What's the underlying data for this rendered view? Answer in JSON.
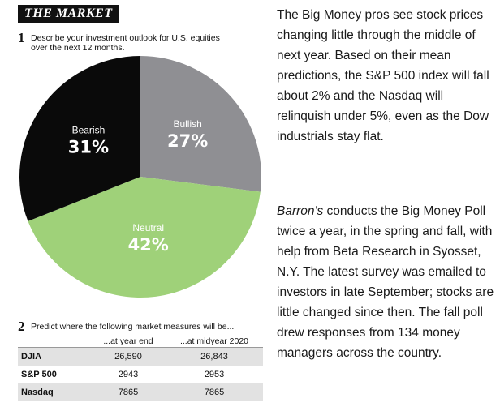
{
  "header": {
    "title": "THE MARKET"
  },
  "question1": {
    "number": "1",
    "text_line1": "Describe your investment outlook for U.S. equities",
    "text_line2": "over the next 12 months."
  },
  "chart_data": [
    {
      "type": "pie",
      "slices": [
        {
          "label": "Bullish",
          "value": 27,
          "display": "27%",
          "color": "#8f8f93"
        },
        {
          "label": "Neutral",
          "value": 42,
          "display": "42%",
          "color": "#9fd179"
        },
        {
          "label": "Bearish",
          "value": 31,
          "display": "31%",
          "color": "#0a0a0a"
        }
      ],
      "start": "12 o'clock, clockwise"
    },
    {
      "type": "table",
      "columns": [
        "",
        "...at year end",
        "...at midyear 2020"
      ],
      "rows": [
        {
          "label": "DJIA",
          "year_end": "26,590",
          "midyear": "26,843"
        },
        {
          "label": "S&P 500",
          "year_end": "2943",
          "midyear": "2953"
        },
        {
          "label": "Nasdaq",
          "year_end": "7865",
          "midyear": "7865"
        }
      ]
    }
  ],
  "question2": {
    "number": "2",
    "text": "Predict where the following market measures will be..."
  },
  "article": {
    "p1": "The Big Money pros see stock prices changing little through the middle of next year. Based on their mean predictions, the S&P 500 index will fall about 2% and the Nasdaq will relinquish under 5%, even as the Dow industrials stay flat.",
    "p2_italic": "Barron's",
    "p2_rest": " conducts the Big Money Poll twice a year, in the spring and fall, with help from Beta Research in Syosset, N.Y. The latest survey was emailed to investors in late September; stocks are little changed since then. The fall poll drew responses from 134 money managers across the country."
  },
  "colors": {
    "shaded_row": "#e2e2e2",
    "text": "#1a1a1a"
  }
}
